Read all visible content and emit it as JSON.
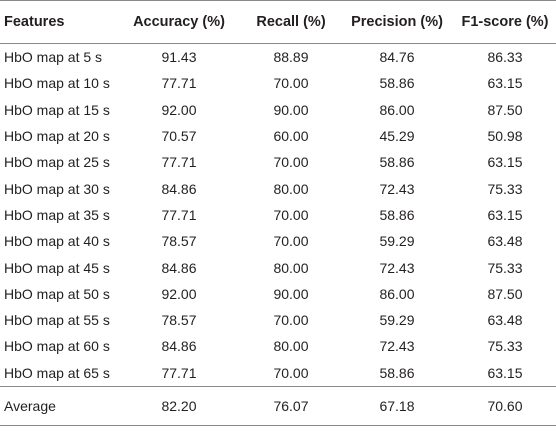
{
  "table": {
    "headers": [
      "Features",
      "Accuracy (%)",
      "Recall (%)",
      "Precision (%)",
      "F1-score (%)"
    ],
    "rows": [
      [
        "HbO map at 5 s",
        "91.43",
        "88.89",
        "84.76",
        "86.33"
      ],
      [
        "HbO map at 10 s",
        "77.71",
        "70.00",
        "58.86",
        "63.15"
      ],
      [
        "HbO map at 15 s",
        "92.00",
        "90.00",
        "86.00",
        "87.50"
      ],
      [
        "HbO map at 20 s",
        "70.57",
        "60.00",
        "45.29",
        "50.98"
      ],
      [
        "HbO map at 25 s",
        "77.71",
        "70.00",
        "58.86",
        "63.15"
      ],
      [
        "HbO map at 30 s",
        "84.86",
        "80.00",
        "72.43",
        "75.33"
      ],
      [
        "HbO map at 35 s",
        "77.71",
        "70.00",
        "58.86",
        "63.15"
      ],
      [
        "HbO map at 40 s",
        "78.57",
        "70.00",
        "59.29",
        "63.48"
      ],
      [
        "HbO map at 45 s",
        "84.86",
        "80.00",
        "72.43",
        "75.33"
      ],
      [
        "HbO map at 50 s",
        "92.00",
        "90.00",
        "86.00",
        "87.50"
      ],
      [
        "HbO map at 55 s",
        "78.57",
        "70.00",
        "59.29",
        "63.48"
      ],
      [
        "HbO map at 60 s",
        "84.86",
        "80.00",
        "72.43",
        "75.33"
      ],
      [
        "HbO map at 65 s",
        "77.71",
        "70.00",
        "58.86",
        "63.15"
      ]
    ],
    "average": [
      "Average",
      "82.20",
      "76.07",
      "67.18",
      "70.60"
    ]
  }
}
